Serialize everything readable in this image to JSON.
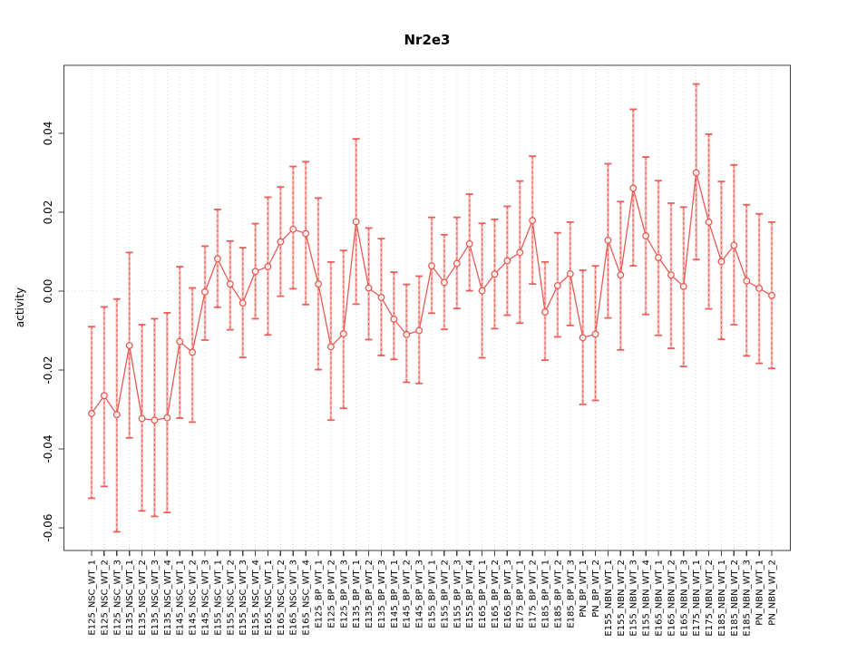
{
  "chart_data": {
    "type": "line",
    "title": "Nr2e3",
    "xlabel": "",
    "ylabel": "activity",
    "legend_position": "none",
    "grid": {
      "vertical_dotted_per_category": true,
      "horizontal_dotted_at_zero": true
    },
    "ylim": [
      -0.066,
      0.055
    ],
    "y_ticks": [
      0.04,
      0.02,
      0.0,
      -0.02,
      -0.04,
      -0.06
    ],
    "y_tick_labels": [
      "0.04",
      "0.02",
      "0.00",
      "-0.02",
      "-0.04",
      "-0.06"
    ],
    "marker": "open-circle",
    "error_bars": true,
    "categories": [
      "E125_NSC_WT_1",
      "E125_NSC_WT_2",
      "E125_NSC_WT_3",
      "E135_NSC_WT_1",
      "E135_NSC_WT_2",
      "E135_NSC_WT_3",
      "E135_NSC_WT_4",
      "E145_NSC_WT_1",
      "E145_NSC_WT_2",
      "E145_NSC_WT_3",
      "E155_NSC_WT_1",
      "E155_NSC_WT_2",
      "E155_NSC_WT_3",
      "E155_NSC_WT_4",
      "E165_NSC_WT_1",
      "E165_NSC_WT_2",
      "E165_NSC_WT_3",
      "E165_NSC_WT_4",
      "E125_BP_WT_1",
      "E125_BP_WT_2",
      "E125_BP_WT_3",
      "E135_BP_WT_1",
      "E135_BP_WT_2",
      "E135_BP_WT_3",
      "E145_BP_WT_1",
      "E145_BP_WT_2",
      "E145_BP_WT_3",
      "E155_BP_WT_1",
      "E155_BP_WT_2",
      "E155_BP_WT_3",
      "E155_BP_WT_4",
      "E165_BP_WT_1",
      "E165_BP_WT_2",
      "E165_BP_WT_3",
      "E175_BP_WT_1",
      "E175_BP_WT_2",
      "E185_BP_WT_1",
      "E185_BP_WT_2",
      "E185_BP_WT_3",
      "PN_BP_WT_1",
      "PN_BP_WT_2",
      "E155_NBN_WT_1",
      "E155_NBN_WT_2",
      "E155_NBN_WT_3",
      "E155_NBN_WT_4",
      "E165_NBN_WT_1",
      "E165_NBN_WT_2",
      "E165_NBN_WT_3",
      "E175_NBN_WT_1",
      "E175_NBN_WT_2",
      "E185_NBN_WT_1",
      "E185_NBN_WT_2",
      "E185_NBN_WT_3",
      "PN_NBN_WT_1",
      "PN_NBN_WT_2"
    ],
    "series": [
      {
        "name": "activity",
        "color": "#e85b55",
        "values": [
          -0.031,
          -0.0265,
          -0.0313,
          -0.0138,
          -0.0323,
          -0.0327,
          -0.0321,
          -0.0128,
          -0.0155,
          -0.0002,
          0.0082,
          0.0018,
          -0.003,
          0.005,
          0.0062,
          0.0125,
          0.0157,
          0.0146,
          0.0018,
          -0.0141,
          -0.0108,
          0.0176,
          0.0008,
          -0.0016,
          -0.0071,
          -0.011,
          -0.01,
          0.0064,
          0.0022,
          0.007,
          0.012,
          0.0001,
          0.0043,
          0.0077,
          0.0098,
          0.0179,
          -0.0053,
          0.0014,
          0.0044,
          -0.0118,
          -0.0109,
          0.0129,
          0.0041,
          0.0261,
          0.014,
          0.0085,
          0.0041,
          0.0012,
          0.03,
          0.0175,
          0.0075,
          0.0116,
          0.0026,
          0.0007,
          -0.0011
        ],
        "err_lo": [
          -0.0525,
          -0.0495,
          -0.061,
          -0.0372,
          -0.0557,
          -0.0571,
          -0.0561,
          -0.0322,
          -0.0332,
          -0.0124,
          -0.0041,
          -0.0098,
          -0.0168,
          -0.007,
          -0.0111,
          -0.0013,
          0.0006,
          -0.0034,
          -0.0199,
          -0.0327,
          -0.0297,
          -0.0033,
          -0.0123,
          -0.0163,
          -0.0173,
          -0.0231,
          -0.0234,
          -0.0056,
          -0.0097,
          -0.0044,
          0.0001,
          -0.0169,
          -0.0095,
          -0.0061,
          -0.0081,
          0.0018,
          -0.0175,
          -0.0116,
          -0.0087,
          -0.0287,
          -0.0277,
          -0.0068,
          -0.0149,
          0.0064,
          -0.0059,
          -0.0112,
          -0.0145,
          -0.0191,
          0.008,
          -0.0045,
          -0.0122,
          -0.0085,
          -0.0164,
          -0.0183,
          -0.0196
        ],
        "err_hi": [
          -0.009,
          -0.004,
          -0.002,
          0.0098,
          -0.0085,
          -0.007,
          -0.0055,
          0.0062,
          0.0008,
          0.0114,
          0.0207,
          0.0127,
          0.011,
          0.0171,
          0.0238,
          0.0264,
          0.0316,
          0.0328,
          0.0236,
          0.0074,
          0.0103,
          0.0386,
          0.016,
          0.0133,
          0.0048,
          0.0017,
          0.0038,
          0.0187,
          0.0143,
          0.0187,
          0.0246,
          0.0172,
          0.0182,
          0.0215,
          0.0279,
          0.0342,
          0.0074,
          0.0148,
          0.0175,
          0.0053,
          0.0064,
          0.0323,
          0.0227,
          0.0461,
          0.034,
          0.028,
          0.0223,
          0.0213,
          0.0525,
          0.0398,
          0.0278,
          0.032,
          0.0219,
          0.0196,
          0.0175
        ]
      }
    ],
    "colors": {
      "point_line": "#e85b55",
      "error_bar_core": "#e8504b",
      "error_bar_glow": "#fba49f",
      "grid": "#d9d9d9",
      "axis": "#404040",
      "text": "#000000",
      "background": "#ffffff"
    }
  }
}
